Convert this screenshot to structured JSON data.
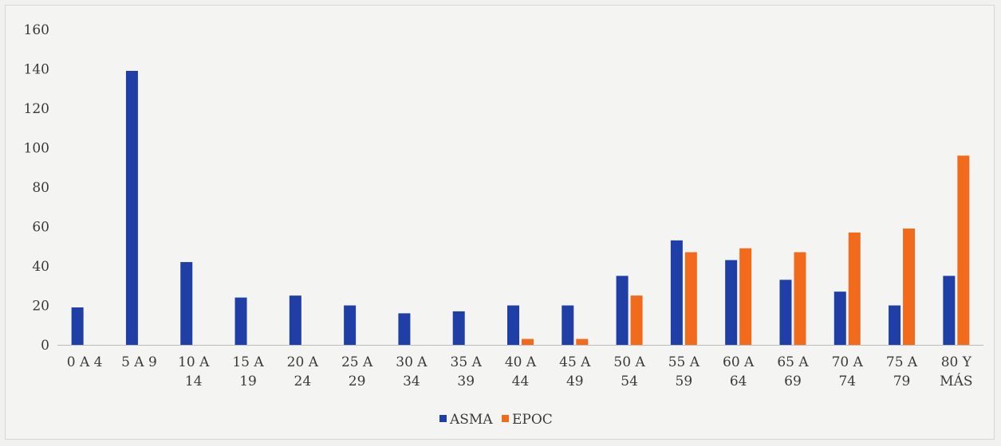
{
  "chart_data": {
    "type": "bar",
    "title": "",
    "xlabel": "",
    "ylabel": "",
    "ylim": [
      0,
      160
    ],
    "yticks": [
      0,
      20,
      40,
      60,
      80,
      100,
      120,
      140,
      160
    ],
    "grid": false,
    "legend_position": "bottom",
    "categories": [
      [
        "0 A 4"
      ],
      [
        "5 A 9"
      ],
      [
        "10 A",
        "14"
      ],
      [
        "15 A",
        "19"
      ],
      [
        "20 A",
        "24"
      ],
      [
        "25 A",
        "29"
      ],
      [
        "30 A",
        "34"
      ],
      [
        "35 A",
        "39"
      ],
      [
        "40 A",
        "44"
      ],
      [
        "45 A",
        "49"
      ],
      [
        "50 A",
        "54"
      ],
      [
        "55 A",
        "59"
      ],
      [
        "60 A",
        "64"
      ],
      [
        "65 A",
        "69"
      ],
      [
        "70 A",
        "74"
      ],
      [
        "75 A",
        "79"
      ],
      [
        "80 Y",
        "MÁS"
      ]
    ],
    "series": [
      {
        "name": "ASMA",
        "color": "#1f3fa6",
        "values": [
          19,
          139,
          42,
          24,
          25,
          20,
          16,
          17,
          20,
          20,
          35,
          53,
          43,
          33,
          27,
          20,
          35
        ]
      },
      {
        "name": "EPOC",
        "color": "#f26b1d",
        "values": [
          0,
          0,
          0,
          0,
          0,
          0,
          0,
          0,
          3,
          3,
          25,
          47,
          49,
          47,
          57,
          59,
          96
        ]
      }
    ]
  }
}
